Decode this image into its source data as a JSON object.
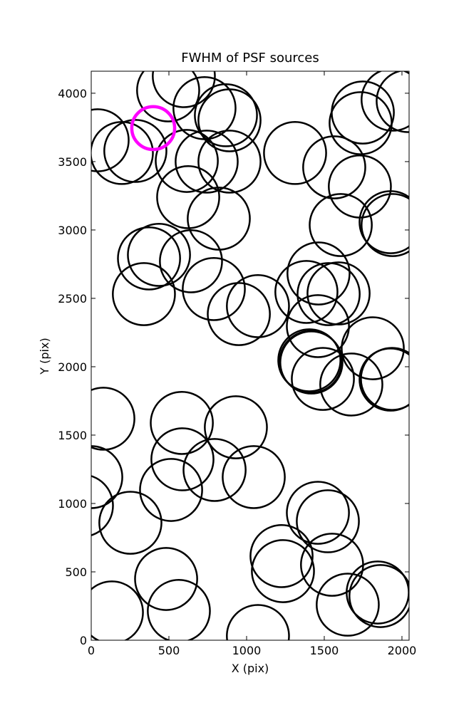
{
  "chart_data": {
    "type": "scatter",
    "title": "FWHM of PSF sources",
    "x_label": "X (pix)",
    "y_label": "Y (pix)",
    "xlim": [
      0,
      2046
    ],
    "ylim": [
      0,
      4161
    ],
    "xticks": [
      0,
      500,
      1000,
      1500,
      2000
    ],
    "yticks": [
      0,
      500,
      1000,
      1500,
      2000,
      2500,
      3000,
      3500,
      4000
    ],
    "series": [
      {
        "color": "#000000",
        "radius": 200,
        "x": [
          41,
          197,
          284,
          495,
          596,
          729,
          615,
          867,
          890,
          743,
          890,
          624,
          821,
          1312,
          1564,
          1734,
          1748,
          1729,
          1940,
          2037,
          1606,
          1927,
          1940,
          372,
          436,
          642,
          339,
          789,
          950,
          1073,
          1385,
          1463,
          1459,
          1528,
          1592,
          1413,
          1404,
          1417,
          1491,
          1674,
          1812,
          1936,
          1927,
          78,
          0,
          583,
          587,
          514,
          931,
          794,
          1046,
          252,
          -60,
          1459,
          1523,
          1225,
          1234,
          1550,
          1651,
          1844,
          1862,
          482,
          564,
          133,
          1073
        ],
        "y": [
          3656,
          3563,
          3578,
          4021,
          4125,
          3891,
          3505,
          3839,
          3802,
          3500,
          3500,
          3240,
          3083,
          3563,
          3458,
          3781,
          3859,
          3318,
          3953,
          3943,
          3036,
          3057,
          3036,
          2792,
          2818,
          2771,
          2531,
          2568,
          2385,
          2443,
          2547,
          2682,
          2297,
          2531,
          2536,
          2036,
          2047,
          2031,
          1911,
          1870,
          2135,
          1911,
          1906,
          1620,
          1193,
          1589,
          1323,
          1099,
          1557,
          1245,
          1193,
          859,
          984,
          932,
          870,
          615,
          505,
          552,
          260,
          349,
          323,
          448,
          214,
          203,
          31
        ]
      },
      {
        "color": "#ff00ff",
        "radius": 138,
        "x": [
          399
        ],
        "y": [
          3745
        ]
      }
    ]
  }
}
